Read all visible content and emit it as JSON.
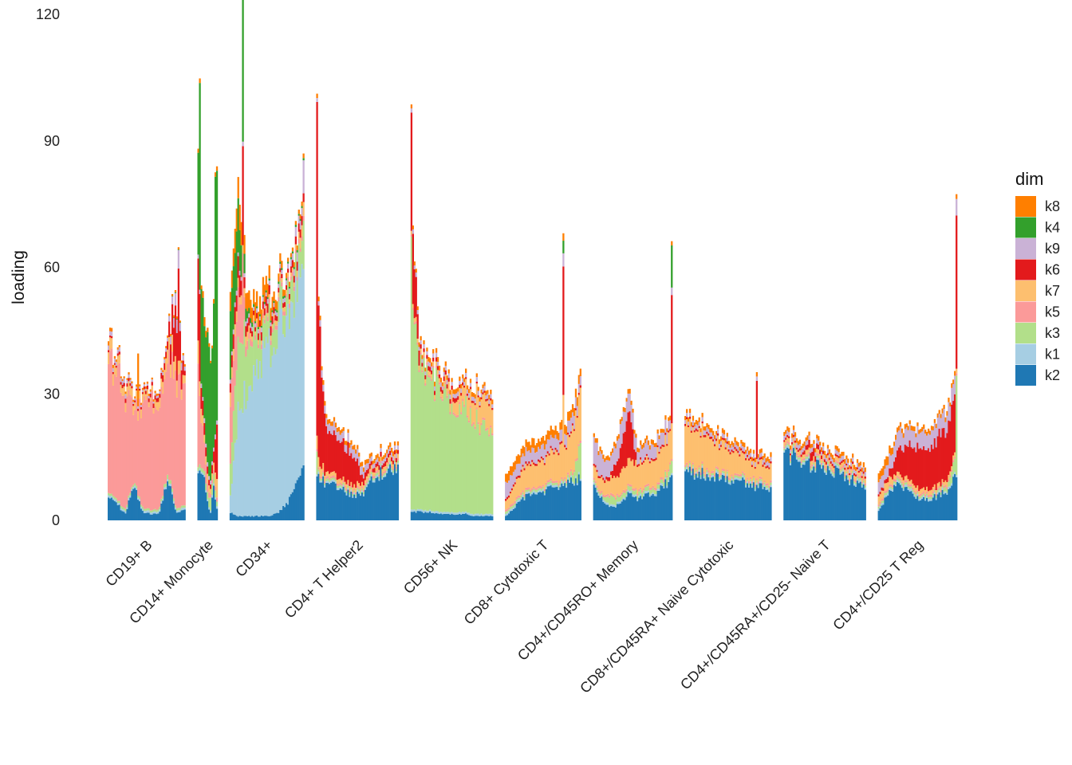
{
  "chart_data": {
    "type": "bar",
    "stacked": true,
    "title": "",
    "xlabel": "",
    "ylabel": "loading",
    "ylim": [
      0,
      120
    ],
    "yticks": [
      0,
      30,
      60,
      90,
      120
    ],
    "legend": {
      "title": "dim",
      "position": "right",
      "entries": [
        {
          "name": "k8",
          "color": "#FF7F00"
        },
        {
          "name": "k4",
          "color": "#33A02C"
        },
        {
          "name": "k9",
          "color": "#CAB2D6"
        },
        {
          "name": "k6",
          "color": "#E31A1C"
        },
        {
          "name": "k7",
          "color": "#FDBF6F"
        },
        {
          "name": "k5",
          "color": "#FB9A99"
        },
        {
          "name": "k3",
          "color": "#B2DF8A"
        },
        {
          "name": "k1",
          "color": "#A6CEE3"
        },
        {
          "name": "k2",
          "color": "#1F78B4"
        }
      ]
    },
    "stack_order_bottom_to_top": [
      "k2",
      "k1",
      "k3",
      "k5",
      "k7",
      "k6",
      "k9",
      "k4",
      "k8"
    ],
    "groups": [
      {
        "name": "CD19+ B",
        "n": 50,
        "k2": [
          6,
          4,
          1.5,
          9,
          2,
          1.5,
          1.5,
          10,
          2,
          2.5
        ],
        "k1": [
          0.5,
          0.5,
          0.5,
          0.5,
          0.5,
          0.5,
          0.5,
          0.5,
          0.5,
          0.5
        ],
        "k3": [
          0.5,
          0.5,
          0.5,
          0.5,
          0.5,
          0.5,
          0.5,
          1,
          0.5,
          0.5
        ],
        "k5": [
          31,
          29,
          27,
          16,
          23,
          25,
          26,
          28,
          29,
          30
        ],
        "k7": [
          3,
          2,
          2,
          2,
          2,
          1,
          2,
          3,
          4,
          2
        ],
        "k6": [
          0.5,
          0.5,
          1,
          0.5,
          0.5,
          1,
          1,
          2,
          12,
          1
        ],
        "k9": [
          1,
          1,
          1,
          0.5,
          0.5,
          0.5,
          0.5,
          1,
          3,
          1
        ],
        "k4": [
          0,
          0,
          0,
          0,
          0,
          0,
          0,
          0,
          0.2,
          0
        ],
        "k8": [
          1,
          0.5,
          0.5,
          0.5,
          0.5,
          0.5,
          0.5,
          0.5,
          0.5,
          0.5
        ]
      },
      {
        "name": "CD14+ Monocyte",
        "n": 13,
        "k2": [
          12,
          10,
          9,
          4,
          2,
          8,
          3
        ],
        "k1": [
          0.5,
          0.5,
          0.5,
          0.5,
          0.5,
          0.5,
          0.5
        ],
        "k3": [
          1,
          1,
          1,
          2,
          3,
          2,
          1
        ],
        "k5": [
          25,
          12,
          6,
          2,
          1,
          1,
          1
        ],
        "k7": [
          5,
          3,
          2,
          2,
          1,
          2,
          5
        ],
        "k6": [
          20,
          5,
          3,
          2,
          1,
          3,
          15
        ],
        "k9": [
          1,
          1,
          1,
          1,
          1,
          1,
          1
        ],
        "k4": [
          27,
          20,
          22,
          28,
          30,
          33,
          60
        ],
        "k8": [
          1,
          1,
          2,
          1,
          0.5,
          1,
          1
        ]
      },
      {
        "name": "CD34+",
        "n": 48,
        "k2": [
          2,
          1,
          1,
          1,
          1,
          1,
          2,
          4,
          8,
          12
        ],
        "k1": [
          4,
          25,
          30,
          33,
          37,
          40,
          44,
          46,
          46,
          50
        ],
        "k3": [
          8,
          18,
          12,
          8,
          6,
          6,
          5,
          5,
          6,
          5
        ],
        "k5": [
          15,
          12,
          2,
          1,
          1,
          1,
          1,
          1,
          1,
          1
        ],
        "k7": [
          3,
          2,
          2,
          1,
          1,
          1,
          1,
          1,
          1,
          3
        ],
        "k6": [
          2,
          5,
          2,
          1,
          2,
          2,
          1,
          1,
          2,
          2
        ],
        "k9": [
          1,
          1,
          1,
          1,
          1,
          1,
          1,
          1,
          2,
          2
        ],
        "k4": [
          15,
          12,
          2,
          0.5,
          0.5,
          0.5,
          0.5,
          0.5,
          0.5,
          0.5
        ],
        "k8": [
          4,
          6,
          4,
          4,
          4,
          3,
          2,
          1,
          1,
          1
        ]
      },
      {
        "name": "CD4+ T Helper2",
        "n": 53,
        "k2": [
          10,
          9,
          8,
          7,
          6,
          6,
          9,
          11,
          12,
          13
        ],
        "k1": [
          0.5,
          0.5,
          0.5,
          0.5,
          0.5,
          0.5,
          0.5,
          0.5,
          0.5,
          0.5
        ],
        "k3": [
          0.5,
          0.5,
          0.5,
          0.5,
          0.5,
          0.5,
          0.5,
          0.5,
          0.5,
          0.5
        ],
        "k5": [
          0.5,
          0.5,
          0.5,
          0.5,
          0.5,
          0.5,
          0.5,
          0.5,
          0.5,
          0.5
        ],
        "k7": [
          3,
          1,
          1,
          1,
          1,
          1,
          1,
          1,
          1,
          1
        ],
        "k6": [
          40,
          10,
          9,
          8,
          8,
          2,
          1,
          1,
          1,
          1
        ],
        "k9": [
          1,
          2,
          2,
          2,
          2,
          2,
          1,
          1,
          1,
          1
        ],
        "k4": [
          0,
          0,
          0,
          0,
          0,
          0,
          0,
          0,
          0,
          0
        ],
        "k8": [
          1,
          1,
          1,
          1,
          1,
          1,
          1,
          1,
          1,
          1
        ]
      },
      {
        "name": "CD56+ NK",
        "n": 53,
        "k2": [
          2,
          2,
          2,
          1.5,
          1.5,
          1.5,
          1.5,
          1,
          1,
          1
        ],
        "k1": [
          0.5,
          0.5,
          0.5,
          0.5,
          0.5,
          0.5,
          0.5,
          0.5,
          0.5,
          0.5
        ],
        "k3": [
          55,
          32,
          31,
          29,
          27,
          26,
          24,
          22,
          21,
          20
        ],
        "k5": [
          0.5,
          0.5,
          0.5,
          0.5,
          0.5,
          0.5,
          0.5,
          0.5,
          0.5,
          0.5
        ],
        "k7": [
          1,
          1,
          1,
          1,
          2,
          3,
          4,
          5,
          6,
          6
        ],
        "k6": [
          18,
          1,
          1,
          1,
          1,
          1,
          0.5,
          0.5,
          0.5,
          0.5
        ],
        "k9": [
          1,
          1,
          1,
          1,
          1,
          1,
          1,
          1,
          1,
          1
        ],
        "k4": [
          0,
          0,
          0,
          0,
          0,
          0,
          0,
          0,
          0,
          0
        ],
        "k8": [
          1,
          1,
          1,
          1,
          1,
          1,
          1,
          1,
          1,
          1
        ]
      },
      {
        "name": "CD8+ Cytotoxic T",
        "n": 49,
        "k2": [
          1,
          3,
          5,
          6,
          6,
          7,
          8,
          8,
          9,
          10
        ],
        "k1": [
          0.5,
          0.5,
          0.5,
          0.5,
          0.5,
          0.5,
          0.5,
          0.5,
          0.5,
          0.5
        ],
        "k3": [
          0.5,
          0.5,
          0.5,
          0.5,
          0.5,
          0.5,
          0.5,
          0.5,
          1,
          8
        ],
        "k5": [
          0.5,
          0.5,
          0.5,
          0.5,
          0.5,
          0.5,
          0.5,
          0.5,
          0.5,
          0.5
        ],
        "k7": [
          2,
          4,
          5,
          6,
          6,
          6,
          7,
          8,
          10,
          12
        ],
        "k6": [
          0.5,
          0.5,
          0.5,
          0.5,
          0.5,
          0.5,
          0.5,
          0.5,
          0.5,
          0.5
        ],
        "k9": [
          4,
          3,
          3,
          3,
          3,
          3,
          3,
          3,
          3,
          2
        ],
        "k4": [
          0,
          0,
          0,
          0,
          0,
          0,
          0,
          0,
          0,
          0
        ],
        "k8": [
          2,
          2,
          2,
          2,
          2,
          2,
          2,
          2,
          2,
          2
        ]
      },
      {
        "name": "CD4+/CD45RO+ Memory",
        "n": 51,
        "k2": [
          8,
          5,
          3,
          4,
          6,
          5,
          6,
          6,
          8,
          10
        ],
        "k1": [
          0.5,
          0.5,
          0.5,
          0.5,
          0.5,
          0.5,
          0.5,
          0.5,
          0.5,
          0.5
        ],
        "k3": [
          0.5,
          0.5,
          2,
          1,
          1,
          1,
          1,
          1,
          1,
          3
        ],
        "k5": [
          0.5,
          0.5,
          0.5,
          0.5,
          0.5,
          0.5,
          0.5,
          0.5,
          0.5,
          0.5
        ],
        "k7": [
          3,
          3,
          4,
          5,
          6,
          6,
          6,
          7,
          8,
          8
        ],
        "k6": [
          0.5,
          0.5,
          1,
          5,
          12,
          0.5,
          0.5,
          0.5,
          0.5,
          0.5
        ],
        "k9": [
          6,
          5,
          4,
          5,
          5,
          3,
          3,
          3,
          3,
          2
        ],
        "k4": [
          0,
          0,
          0,
          0,
          0,
          0,
          0,
          0,
          0,
          0
        ],
        "k8": [
          1,
          1,
          1,
          1,
          1,
          1,
          1,
          1,
          1,
          1
        ]
      },
      {
        "name": "CD8+/CD45RA+ Naive Cytotoxic",
        "n": 56,
        "k2": [
          12,
          11,
          11,
          10,
          10,
          9,
          9,
          8,
          8,
          7
        ],
        "k1": [
          0.5,
          0.5,
          0.5,
          0.5,
          0.5,
          0.5,
          0.5,
          0.5,
          0.5,
          0.5
        ],
        "k3": [
          0.5,
          0.5,
          0.5,
          0.5,
          0.5,
          0.5,
          0.5,
          0.5,
          0.5,
          0.5
        ],
        "k5": [
          0.5,
          0.5,
          0.5,
          0.5,
          0.5,
          0.5,
          0.5,
          0.5,
          0.5,
          0.5
        ],
        "k7": [
          10,
          9,
          8,
          7,
          6,
          5,
          5,
          4,
          4,
          4
        ],
        "k6": [
          0.5,
          0.5,
          0.5,
          0.5,
          0.5,
          0.5,
          0.5,
          0.5,
          0.5,
          0.5
        ],
        "k9": [
          1,
          1,
          1,
          1,
          1,
          1,
          1,
          1,
          1,
          1
        ],
        "k4": [
          0,
          0,
          0,
          0,
          0,
          0,
          0,
          0,
          0,
          0
        ],
        "k8": [
          1,
          1,
          1,
          1,
          1,
          1,
          1,
          1,
          1,
          1
        ]
      },
      {
        "name": "CD4+/CD45RA+/CD25- Naive T",
        "n": 53,
        "k2": [
          16,
          15,
          14,
          13,
          13,
          12,
          11,
          10,
          9,
          8
        ],
        "k1": [
          0.5,
          0.5,
          0.5,
          0.5,
          0.5,
          0.5,
          0.5,
          0.5,
          0.5,
          0.5
        ],
        "k3": [
          0.5,
          0.5,
          0.5,
          0.5,
          0.5,
          0.5,
          0.5,
          0.5,
          0.5,
          0.5
        ],
        "k5": [
          0.5,
          0.5,
          0.5,
          0.5,
          0.5,
          0.5,
          0.5,
          0.5,
          0.5,
          0.5
        ],
        "k7": [
          1,
          1,
          1,
          1,
          1,
          1,
          1,
          1,
          1,
          1
        ],
        "k6": [
          0.5,
          0.5,
          0.5,
          2,
          1,
          0.5,
          0.5,
          0.5,
          0.5,
          0.5
        ],
        "k9": [
          1,
          1,
          1,
          1,
          1,
          1,
          1,
          1,
          1,
          1
        ],
        "k4": [
          0,
          0,
          0,
          0,
          0,
          0,
          0,
          0,
          0,
          0
        ],
        "k8": [
          1,
          1,
          1,
          1,
          1,
          1,
          1,
          1,
          1,
          1
        ]
      },
      {
        "name": "CD4+/CD25 T Reg",
        "n": 51,
        "k2": [
          2,
          6,
          9,
          8,
          6,
          5,
          5,
          6,
          7,
          12
        ],
        "k1": [
          0.5,
          0.5,
          0.5,
          0.5,
          0.5,
          0.5,
          0.5,
          0.5,
          0.5,
          0.5
        ],
        "k3": [
          0.5,
          0.5,
          0.5,
          0.5,
          0.5,
          0.5,
          0.5,
          0.5,
          1,
          4
        ],
        "k5": [
          0.5,
          0.5,
          0.5,
          0.5,
          0.5,
          0.5,
          0.5,
          0.5,
          0.5,
          0.5
        ],
        "k7": [
          2,
          2,
          1,
          1,
          1,
          1,
          1,
          1,
          1,
          1
        ],
        "k6": [
          0.5,
          1,
          4,
          8,
          9,
          10,
          10,
          11,
          12,
          14
        ],
        "k9": [
          3,
          3,
          4,
          4,
          4,
          4,
          4,
          4,
          4,
          4
        ],
        "k4": [
          0,
          0,
          0,
          0,
          0,
          0,
          0,
          0,
          0,
          0
        ],
        "k8": [
          2,
          2,
          1,
          1,
          1,
          1,
          1,
          1,
          1,
          1
        ]
      }
    ],
    "spikes": [
      {
        "group": "CD19+ B",
        "pos": 0.38,
        "add": {
          "k8": 12
        }
      },
      {
        "group": "CD19+ B",
        "pos": 0.92,
        "add": {
          "k6": 14,
          "k9": 2
        }
      },
      {
        "group": "CD14+ Monocyte",
        "pos": 0.05,
        "add": {
          "k4": 28,
          "k6": 10
        }
      },
      {
        "group": "CD14+ Monocyte",
        "pos": 0.94,
        "add": {
          "k4": 15
        }
      },
      {
        "group": "CD34+",
        "pos": 0.17,
        "add": {
          "k4": 35,
          "k6": 20,
          "k5": 15
        }
      },
      {
        "group": "CD34+",
        "pos": 0.99,
        "add": {
          "k9": 6,
          "k3": 6
        }
      },
      {
        "group": "CD4+ T Helper2",
        "pos": 0.0,
        "add": {
          "k6": 35,
          "k3": 5
        }
      },
      {
        "group": "CD56+ NK",
        "pos": 0.0,
        "add": {
          "k6": 12,
          "k3": 10
        }
      },
      {
        "group": "CD8+ Cytotoxic T",
        "pos": 0.78,
        "add": {
          "k6": 30,
          "k4": 3,
          "k7": 12
        }
      },
      {
        "group": "CD4+/CD45RO+ Memory",
        "pos": 0.99,
        "add": {
          "k6": 30,
          "k4": 10
        }
      },
      {
        "group": "CD8+/CD45RA+ Naive Cytotoxic",
        "pos": 0.84,
        "add": {
          "k6": 18
        }
      },
      {
        "group": "CD4+/CD25 T Reg",
        "pos": 0.99,
        "add": {
          "k6": 22,
          "k3": 20
        }
      }
    ]
  }
}
